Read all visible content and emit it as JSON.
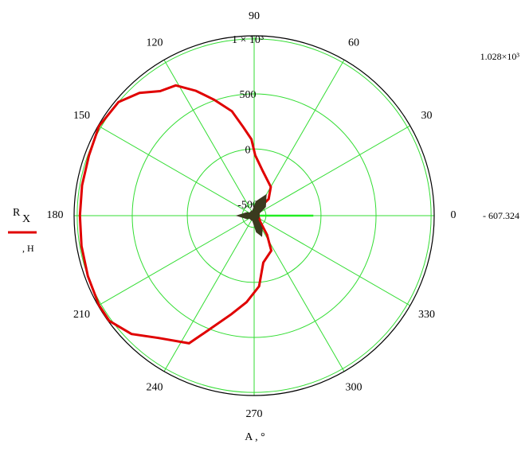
{
  "chart_data": {
    "type": "polar",
    "xlabel": "A , °",
    "legend_label": "R",
    "legend_sub": "X",
    "legend_unit": ", H",
    "angle_ticks": [
      0,
      30,
      60,
      90,
      120,
      150,
      180,
      210,
      240,
      270,
      300,
      330
    ],
    "rlim": [
      {
        "value": -607.324,
        "label": "- 607.324"
      },
      {
        "value": 1028,
        "label": "1.028×10³"
      }
    ],
    "rticks": [
      -500,
      0,
      500,
      {
        "value": 1000,
        "label": "1 × 10³"
      }
    ],
    "grid": true,
    "grid_color": "#33dd33",
    "series": [
      {
        "color": "#e00000",
        "x": [
          0,
          30,
          56,
          49,
          60,
          79,
          89,
          92,
          97,
          102,
          109,
          115,
          121,
          127,
          133,
          140,
          150,
          160,
          170,
          180,
          190,
          200,
          210,
          216,
          224,
          232,
          243,
          248,
          257,
          265,
          274,
          281,
          296,
          304,
          315,
          360
        ],
        "values": [
          -570,
          -560,
          -529,
          -407,
          -305,
          -195,
          -57,
          88,
          203,
          363,
          507,
          645,
          775,
          811,
          919,
          1000,
          1020,
          990,
          980,
          975,
          985,
          1000,
          1020,
          1020,
          942,
          804,
          695,
          520,
          312,
          182,
          37,
          -173,
          -253,
          -398,
          -530,
          -570
        ]
      },
      {
        "color": "#3a3a1e",
        "x": [
          0,
          20,
          40,
          60,
          80,
          100,
          120,
          140,
          160,
          180,
          200,
          220,
          240,
          260,
          280,
          290,
          300,
          320,
          340,
          360
        ],
        "values": [
          -590,
          -580,
          -480,
          -400,
          -480,
          -560,
          -595,
          -590,
          -540,
          -470,
          -540,
          -595,
          -600,
          -560,
          -460,
          -420,
          -470,
          -580,
          -600,
          -590
        ]
      },
      {
        "color": "#22ee22",
        "x": [
          0,
          0
        ],
        "values": [
          -607.324,
          -70
        ]
      }
    ]
  }
}
